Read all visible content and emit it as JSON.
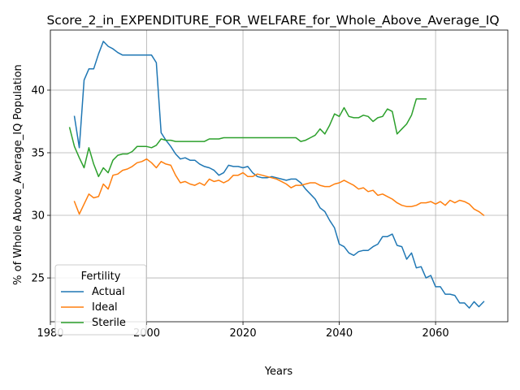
{
  "chart_data": {
    "type": "line",
    "title": "Score_2_in_EXPENDITURE_FOR_WELFARE_for_Whole_Above_Average_IQ",
    "xlabel": "Years",
    "ylabel": "% of Whole Above_Average_IQ Population",
    "xlim": [
      1980,
      2075
    ],
    "ylim": [
      21.5,
      44.8
    ],
    "xticks": [
      1980,
      2000,
      2020,
      2040,
      2060
    ],
    "yticks": [
      25,
      30,
      35,
      40
    ],
    "grid": true,
    "legend": {
      "title": "Fertility",
      "position": "lower-left"
    },
    "series": [
      {
        "name": "Actual",
        "color": "#1f77b4",
        "x": [
          1985,
          1986,
          1987,
          1988,
          1989,
          1990,
          1991,
          1992,
          1993,
          1994,
          1995,
          1996,
          1997,
          1998,
          1999,
          2000,
          2001,
          2002,
          2003,
          2004,
          2005,
          2006,
          2007,
          2008,
          2009,
          2010,
          2011,
          2012,
          2013,
          2014,
          2015,
          2016,
          2017,
          2018,
          2019,
          2020,
          2021,
          2022,
          2023,
          2024,
          2025,
          2026,
          2027,
          2028,
          2029,
          2030,
          2031,
          2032,
          2033,
          2034,
          2035,
          2036,
          2037,
          2038,
          2039,
          2040,
          2041,
          2042,
          2043,
          2044,
          2045,
          2046,
          2047,
          2048,
          2049,
          2050,
          2051,
          2052,
          2053,
          2054,
          2055,
          2056,
          2057,
          2058,
          2059,
          2060,
          2061,
          2062,
          2063,
          2064,
          2065,
          2066,
          2067,
          2068,
          2069,
          2070
        ],
        "y": [
          37.9,
          35.4,
          40.8,
          41.7,
          41.7,
          42.9,
          43.9,
          43.5,
          43.3,
          43.0,
          42.8,
          42.8,
          42.8,
          42.8,
          42.8,
          42.8,
          42.8,
          42.2,
          36.6,
          36.0,
          35.5,
          34.9,
          34.5,
          34.6,
          34.4,
          34.4,
          34.1,
          33.9,
          33.8,
          33.6,
          33.2,
          33.4,
          34.0,
          33.9,
          33.9,
          33.8,
          33.9,
          33.4,
          33.1,
          33.0,
          33.0,
          33.1,
          33.0,
          32.9,
          32.8,
          32.9,
          32.9,
          32.6,
          32.1,
          31.7,
          31.3,
          30.6,
          30.3,
          29.6,
          29.0,
          27.7,
          27.5,
          27.0,
          26.8,
          27.1,
          27.2,
          27.2,
          27.5,
          27.7,
          28.3,
          28.3,
          28.5,
          27.6,
          27.5,
          26.5,
          27.0,
          25.8,
          25.9,
          25.0,
          25.2,
          24.3,
          24.3,
          23.7,
          23.7,
          23.6,
          23.0,
          23.0,
          22.6,
          23.1,
          22.7,
          23.1
        ]
      },
      {
        "name": "Ideal",
        "color": "#ff7f0e",
        "x": [
          1985,
          1986,
          1987,
          1988,
          1989,
          1990,
          1991,
          1992,
          1993,
          1994,
          1995,
          1996,
          1997,
          1998,
          1999,
          2000,
          2001,
          2002,
          2003,
          2004,
          2005,
          2006,
          2007,
          2008,
          2009,
          2010,
          2011,
          2012,
          2013,
          2014,
          2015,
          2016,
          2017,
          2018,
          2019,
          2020,
          2021,
          2022,
          2023,
          2024,
          2025,
          2026,
          2027,
          2028,
          2029,
          2030,
          2031,
          2032,
          2033,
          2034,
          2035,
          2036,
          2037,
          2038,
          2039,
          2040,
          2041,
          2042,
          2043,
          2044,
          2045,
          2046,
          2047,
          2048,
          2049,
          2050,
          2051,
          2052,
          2053,
          2054,
          2055,
          2056,
          2057,
          2058,
          2059,
          2060,
          2061,
          2062,
          2063,
          2064,
          2065,
          2066,
          2067,
          2068,
          2069,
          2070
        ],
        "y": [
          31.1,
          30.1,
          30.9,
          31.7,
          31.4,
          31.5,
          32.5,
          32.1,
          33.2,
          33.3,
          33.6,
          33.7,
          33.9,
          34.2,
          34.3,
          34.5,
          34.2,
          33.8,
          34.3,
          34.1,
          34.0,
          33.2,
          32.6,
          32.7,
          32.5,
          32.4,
          32.6,
          32.4,
          32.9,
          32.7,
          32.8,
          32.6,
          32.8,
          33.2,
          33.2,
          33.4,
          33.1,
          33.1,
          33.3,
          33.2,
          33.1,
          33.0,
          32.9,
          32.7,
          32.5,
          32.2,
          32.4,
          32.4,
          32.5,
          32.6,
          32.6,
          32.4,
          32.3,
          32.3,
          32.5,
          32.6,
          32.8,
          32.6,
          32.4,
          32.1,
          32.2,
          31.9,
          32.0,
          31.6,
          31.7,
          31.5,
          31.3,
          31.0,
          30.8,
          30.7,
          30.7,
          30.8,
          31.0,
          31.0,
          31.1,
          30.9,
          31.1,
          30.8,
          31.2,
          31.0,
          31.2,
          31.1,
          30.9,
          30.5,
          30.3,
          30.0
        ]
      },
      {
        "name": "Sterile",
        "color": "#2ca02c",
        "x": [
          1984,
          1985,
          1986,
          1987,
          1988,
          1989,
          1990,
          1991,
          1992,
          1993,
          1994,
          1995,
          1996,
          1997,
          1998,
          1999,
          2000,
          2001,
          2002,
          2003,
          2004,
          2005,
          2006,
          2007,
          2008,
          2009,
          2010,
          2011,
          2012,
          2013,
          2014,
          2015,
          2016,
          2017,
          2018,
          2019,
          2020,
          2021,
          2022,
          2023,
          2024,
          2025,
          2026,
          2027,
          2028,
          2029,
          2030,
          2031,
          2032,
          2033,
          2034,
          2035,
          2036,
          2037,
          2038,
          2039,
          2040,
          2041,
          2042,
          2043,
          2044,
          2045,
          2046,
          2047,
          2048,
          2049,
          2050,
          2051,
          2052,
          2053,
          2054,
          2055,
          2056,
          2057,
          2058
        ],
        "y": [
          37.0,
          35.5,
          34.6,
          33.8,
          35.4,
          34.1,
          33.1,
          33.8,
          33.4,
          34.4,
          34.8,
          34.9,
          34.9,
          35.1,
          35.5,
          35.5,
          35.5,
          35.4,
          35.6,
          36.1,
          36.0,
          36.0,
          35.9,
          35.9,
          35.9,
          35.9,
          35.9,
          35.9,
          35.9,
          36.1,
          36.1,
          36.1,
          36.2,
          36.2,
          36.2,
          36.2,
          36.2,
          36.2,
          36.2,
          36.2,
          36.2,
          36.2,
          36.2,
          36.2,
          36.2,
          36.2,
          36.2,
          36.2,
          35.9,
          36.0,
          36.2,
          36.4,
          36.9,
          36.5,
          37.2,
          38.1,
          37.9,
          38.6,
          37.9,
          37.8,
          37.8,
          38.0,
          37.9,
          37.5,
          37.8,
          37.9,
          38.5,
          38.3,
          36.5,
          36.9,
          37.3,
          38.0,
          39.3,
          39.3,
          39.3
        ]
      }
    ]
  }
}
